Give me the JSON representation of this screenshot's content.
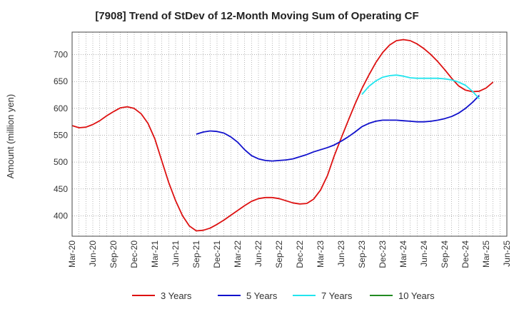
{
  "chart_data": {
    "type": "line",
    "title": "[7908]  Trend of StDev of 12-Month Moving Sum of Operating CF",
    "xlabel": "",
    "ylabel": "Amount (million yen)",
    "x_tick_labels": [
      "Mar-20",
      "Jun-20",
      "Sep-20",
      "Dec-20",
      "Mar-21",
      "Jun-21",
      "Sep-21",
      "Dec-21",
      "Mar-22",
      "Jun-22",
      "Sep-22",
      "Dec-22",
      "Mar-23",
      "Jun-23",
      "Sep-23",
      "Dec-23",
      "Mar-24",
      "Jun-24",
      "Sep-24",
      "Dec-24",
      "Mar-25",
      "Jun-25"
    ],
    "y_ticks": [
      400,
      450,
      500,
      550,
      600,
      650,
      700
    ],
    "ylim": [
      362,
      742
    ],
    "grid": true,
    "legend_position": "bottom",
    "series": [
      {
        "name": "3 Years",
        "color": "#dd1111",
        "start_index": 0,
        "values": [
          568,
          564,
          565,
          570,
          577,
          586,
          594,
          601,
          603,
          600,
          590,
          572,
          543,
          502,
          462,
          428,
          400,
          381,
          372,
          373,
          377,
          384,
          392,
          401,
          410,
          419,
          427,
          432,
          434,
          434,
          432,
          428,
          424,
          422,
          423,
          431,
          448,
          475,
          512,
          545,
          577,
          608,
          637,
          662,
          685,
          704,
          718,
          726,
          728,
          726,
          720,
          711,
          700,
          687,
          672,
          656,
          642,
          634,
          631,
          632,
          638,
          649
        ]
      },
      {
        "name": "5 Years",
        "color": "#1111cc",
        "start_index": 18,
        "values": [
          552,
          556,
          558,
          557,
          554,
          547,
          537,
          523,
          512,
          506,
          503,
          502,
          503,
          504,
          506,
          510,
          514,
          519,
          523,
          527,
          532,
          539,
          547,
          556,
          566,
          572,
          576,
          578,
          578,
          578,
          577,
          576,
          575,
          575,
          576,
          578,
          581,
          585,
          591,
          600,
          611,
          624
        ]
      },
      {
        "name": "7 Years",
        "color": "#22e5ee",
        "start_index": 42,
        "values": [
          626,
          641,
          651,
          658,
          661,
          662,
          660,
          657,
          656,
          656,
          656,
          656,
          655,
          653,
          649,
          643,
          632,
          618
        ]
      },
      {
        "name": "10 Years",
        "color": "#228b22",
        "start_index": 0,
        "values": []
      }
    ]
  }
}
